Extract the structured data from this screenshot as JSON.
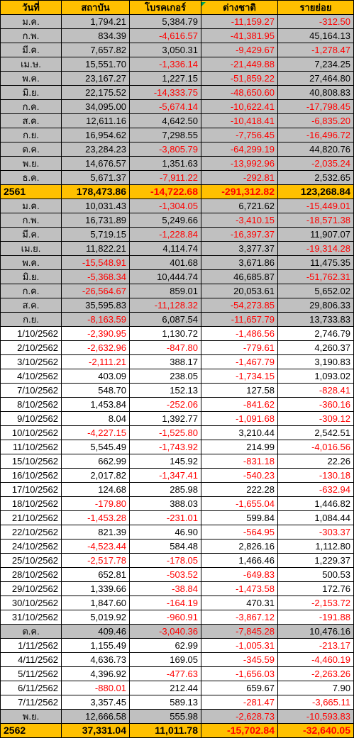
{
  "headers": [
    "วันที่",
    "สถาบัน",
    "โบรคเกอร์",
    "ต่างชาติ",
    "รายย่อย"
  ],
  "rows": [
    {
      "type": "month",
      "label": "ม.ค.",
      "values": [
        "1,794.21",
        "5,384.79",
        "-11,159.27",
        "-312.50"
      ]
    },
    {
      "type": "month",
      "label": "ก.พ.",
      "values": [
        "834.39",
        "-4,616.57",
        "-41,381.95",
        "45,164.13"
      ]
    },
    {
      "type": "month",
      "label": "มี.ค.",
      "values": [
        "7,657.82",
        "3,050.31",
        "-9,429.67",
        "-1,278.47"
      ]
    },
    {
      "type": "month",
      "label": "เม.ษ.",
      "values": [
        "15,551.70",
        "-1,336.14",
        "-21,449.88",
        "7,234.25"
      ]
    },
    {
      "type": "month",
      "label": "พ.ค.",
      "values": [
        "23,167.27",
        "1,227.15",
        "-51,859.22",
        "27,464.80"
      ]
    },
    {
      "type": "month",
      "label": "มิ.ย.",
      "values": [
        "22,175.52",
        "-14,333.75",
        "-48,650.60",
        "40,808.83"
      ]
    },
    {
      "type": "month",
      "label": "ก.ค.",
      "values": [
        "34,095.00",
        "-5,674.14",
        "-10,622.41",
        "-17,798.45"
      ]
    },
    {
      "type": "month",
      "label": "ส.ค.",
      "values": [
        "12,611.16",
        "4,642.50",
        "-10,418.41",
        "-6,835.20"
      ]
    },
    {
      "type": "month",
      "label": "ก.ย.",
      "values": [
        "16,954.62",
        "7,298.55",
        "-7,756.45",
        "-16,496.72"
      ]
    },
    {
      "type": "month",
      "label": "ต.ค.",
      "values": [
        "23,284.23",
        "-3,805.79",
        "-64,299.19",
        "44,820.76"
      ]
    },
    {
      "type": "month",
      "label": "พ.ย.",
      "values": [
        "14,676.57",
        "1,351.63",
        "-13,992.96",
        "-2,035.24"
      ]
    },
    {
      "type": "month",
      "label": "ธ.ค.",
      "values": [
        "5,671.37",
        "-7,911.22",
        "-292.81",
        "2,532.65"
      ]
    },
    {
      "type": "year",
      "label": "2561",
      "values": [
        "178,473.86",
        "-14,722.68",
        "-291,312.82",
        "123,268.84"
      ]
    },
    {
      "type": "month",
      "label": "ม.ค.",
      "values": [
        "10,031.43",
        "-1,304.05",
        "6,721.62",
        "-15,449.01"
      ]
    },
    {
      "type": "month",
      "label": "ก.พ.",
      "values": [
        "16,731.89",
        "5,249.66",
        "-3,410.15",
        "-18,571.38"
      ]
    },
    {
      "type": "month",
      "label": "มี.ค.",
      "values": [
        "5,719.15",
        "-1,228.84",
        "-16,397.37",
        "11,907.07"
      ]
    },
    {
      "type": "month",
      "label": "เม.ย.",
      "values": [
        "11,822.21",
        "4,114.74",
        "3,377.37",
        "-19,314.28"
      ]
    },
    {
      "type": "month",
      "label": "พ.ค.",
      "values": [
        "-15,548.91",
        "401.68",
        "3,671.86",
        "11,475.35"
      ]
    },
    {
      "type": "month",
      "label": "มิ.ย.",
      "values": [
        "-5,368.34",
        "10,444.74",
        "46,685.87",
        "-51,762.31"
      ]
    },
    {
      "type": "month",
      "label": "ก.ค.",
      "values": [
        "-26,564.67",
        "859.01",
        "20,053.61",
        "5,652.02"
      ]
    },
    {
      "type": "month",
      "label": "ส.ค.",
      "values": [
        "35,595.83",
        "-11,128.32",
        "-54,273.85",
        "29,806.33"
      ]
    },
    {
      "type": "month",
      "label": "ก.ย.",
      "values": [
        "-8,163.59",
        "6,087.54",
        "-11,657.79",
        "13,733.83"
      ]
    },
    {
      "type": "day",
      "label": "1/10/2562",
      "values": [
        "-2,390.95",
        "1,130.72",
        "-1,486.56",
        "2,746.79"
      ]
    },
    {
      "type": "day",
      "label": "2/10/2562",
      "values": [
        "-2,632.96",
        "-847.80",
        "-779.61",
        "4,260.37"
      ]
    },
    {
      "type": "day",
      "label": "3/10/2562",
      "values": [
        "-2,111.21",
        "388.17",
        "-1,467.79",
        "3,190.83"
      ]
    },
    {
      "type": "day",
      "label": "4/10/2562",
      "values": [
        "403.09",
        "238.05",
        "-1,734.15",
        "1,093.02"
      ]
    },
    {
      "type": "day",
      "label": "7/10/2562",
      "values": [
        "548.70",
        "152.13",
        "127.58",
        "-828.41"
      ]
    },
    {
      "type": "day",
      "label": "8/10/2562",
      "values": [
        "1,453.84",
        "-252.06",
        "-841.62",
        "-360.16"
      ]
    },
    {
      "type": "day",
      "label": "9/10/2562",
      "values": [
        "8.04",
        "1,392.77",
        "-1,091.68",
        "-309.12"
      ]
    },
    {
      "type": "day",
      "label": "10/10/2562",
      "values": [
        "-4,227.15",
        "-1,525.80",
        "3,210.44",
        "2,542.51"
      ]
    },
    {
      "type": "day",
      "label": "11/10/2562",
      "values": [
        "5,545.49",
        "-1,743.92",
        "214.99",
        "-4,016.56"
      ]
    },
    {
      "type": "day",
      "label": "15/10/2562",
      "values": [
        "662.99",
        "145.92",
        "-831.18",
        "22.26"
      ]
    },
    {
      "type": "day",
      "label": "16/10/2562",
      "values": [
        "2,017.82",
        "-1,347.41",
        "-540.23",
        "-130.18"
      ]
    },
    {
      "type": "day",
      "label": "17/10/2562",
      "values": [
        "124.68",
        "285.98",
        "222.28",
        "-632.94"
      ]
    },
    {
      "type": "day",
      "label": "18/10/2562",
      "values": [
        "-179.80",
        "388.03",
        "-1,655.04",
        "1,446.82"
      ]
    },
    {
      "type": "day",
      "label": "21/10/2562",
      "values": [
        "-1,453.28",
        "-231.01",
        "599.84",
        "1,084.44"
      ]
    },
    {
      "type": "day",
      "label": "22/10/2562",
      "values": [
        "821.39",
        "46.90",
        "-564.95",
        "-303.37"
      ]
    },
    {
      "type": "day",
      "label": "24/10/2562",
      "values": [
        "-4,523.44",
        "584.48",
        "2,826.16",
        "1,112.80"
      ]
    },
    {
      "type": "day",
      "label": "25/10/2562",
      "values": [
        "-2,517.78",
        "-178.05",
        "1,466.46",
        "1,229.37"
      ]
    },
    {
      "type": "day",
      "label": "28/10/2562",
      "values": [
        "652.81",
        "-503.52",
        "-649.83",
        "500.53"
      ]
    },
    {
      "type": "day",
      "label": "29/10/2562",
      "values": [
        "1,339.66",
        "-38.84",
        "-1,473.58",
        "172.76"
      ]
    },
    {
      "type": "day",
      "label": "30/10/2562",
      "values": [
        "1,847.60",
        "-164.19",
        "470.31",
        "-2,153.72"
      ]
    },
    {
      "type": "day",
      "label": "31/10/2562",
      "values": [
        "5,019.92",
        "-960.91",
        "-3,867.12",
        "-191.88"
      ]
    },
    {
      "type": "month",
      "label": "ต.ค.",
      "values": [
        "409.46",
        "-3,040.36",
        "-7,845.28",
        "10,476.16"
      ]
    },
    {
      "type": "day",
      "label": "1/11/2562",
      "values": [
        "1,155.49",
        "62.99",
        "-1,005.31",
        "-213.17"
      ]
    },
    {
      "type": "day",
      "label": "4/11/2562",
      "values": [
        "4,636.73",
        "169.05",
        "-345.59",
        "-4,460.19"
      ]
    },
    {
      "type": "day",
      "label": "5/11/2562",
      "values": [
        "4,396.92",
        "-477.63",
        "-1,656.03",
        "-2,263.26"
      ]
    },
    {
      "type": "day",
      "label": "6/11/2562",
      "values": [
        "-880.01",
        "212.44",
        "659.67",
        "7.90"
      ]
    },
    {
      "type": "day",
      "label": "7/11/2562",
      "values": [
        "3,357.45",
        "589.13",
        "-281.47",
        "-3,665.11"
      ]
    },
    {
      "type": "month",
      "label": "พ.ย.",
      "values": [
        "12,666.58",
        "555.98",
        "-2,628.73",
        "-10,593.83"
      ]
    },
    {
      "type": "year",
      "label": "2562",
      "values": [
        "37,331.04",
        "11,011.78",
        "-15,702.84",
        "-32,640.05"
      ]
    }
  ],
  "colors": {
    "header_bg": "#ffc000",
    "year_bg": "#ffc000",
    "month_bg": "#c0c0c0",
    "day_bg": "#ffffff",
    "negative_text": "#ff0000",
    "comment_marker": "#00a651"
  }
}
